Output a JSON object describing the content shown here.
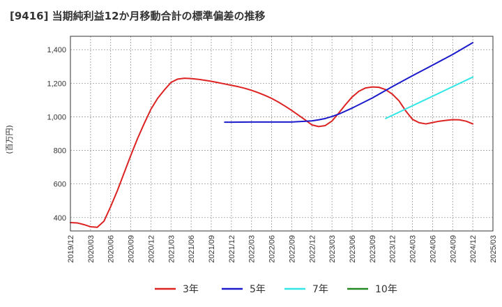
{
  "chart_data": {
    "type": "line",
    "title": "[9416]  当期純利益12か月移動合計の標準偏差の推移",
    "ylabel": "(百万円)",
    "xlabel": "",
    "ylim": [
      320,
      1480
    ],
    "yticks": [
      400,
      600,
      800,
      1000,
      1200,
      1400
    ],
    "ytick_labels": [
      "400",
      "600",
      "800",
      "1,000",
      "1,200",
      "1,400"
    ],
    "xticks": [
      "2019/12",
      "2020/03",
      "2020/06",
      "2020/09",
      "2020/12",
      "2021/03",
      "2021/06",
      "2021/09",
      "2021/12",
      "2022/03",
      "2022/06",
      "2022/09",
      "2022/12",
      "2023/03",
      "2023/06",
      "2023/09",
      "2023/12",
      "2024/03",
      "2024/06",
      "2024/09",
      "2024/12",
      "2025/03"
    ],
    "grid": true,
    "legend_position": "bottom",
    "series": [
      {
        "name": "3年",
        "color": "#dd2222",
        "points": [
          [
            "2019/12",
            370
          ],
          [
            "2020/01",
            368
          ],
          [
            "2020/02",
            358
          ],
          [
            "2020/03",
            345
          ],
          [
            "2020/04",
            342
          ],
          [
            "2020/05",
            378
          ],
          [
            "2020/06",
            465
          ],
          [
            "2020/07",
            560
          ],
          [
            "2020/08",
            665
          ],
          [
            "2020/09",
            770
          ],
          [
            "2020/10",
            870
          ],
          [
            "2020/11",
            960
          ],
          [
            "2020/12",
            1045
          ],
          [
            "2021/01",
            1110
          ],
          [
            "2021/02",
            1160
          ],
          [
            "2021/03",
            1205
          ],
          [
            "2021/04",
            1225
          ],
          [
            "2021/05",
            1230
          ],
          [
            "2021/06",
            1228
          ],
          [
            "2021/07",
            1224
          ],
          [
            "2021/08",
            1218
          ],
          [
            "2021/09",
            1212
          ],
          [
            "2021/10",
            1204
          ],
          [
            "2021/11",
            1196
          ],
          [
            "2021/12",
            1188
          ],
          [
            "2022/01",
            1180
          ],
          [
            "2022/02",
            1170
          ],
          [
            "2022/03",
            1158
          ],
          [
            "2022/04",
            1144
          ],
          [
            "2022/05",
            1128
          ],
          [
            "2022/06",
            1110
          ],
          [
            "2022/07",
            1088
          ],
          [
            "2022/08",
            1064
          ],
          [
            "2022/09",
            1038
          ],
          [
            "2022/10",
            1010
          ],
          [
            "2022/11",
            982
          ],
          [
            "2022/12",
            952
          ],
          [
            "2023/01",
            942
          ],
          [
            "2023/02",
            948
          ],
          [
            "2023/03",
            975
          ],
          [
            "2023/04",
            1022
          ],
          [
            "2023/05",
            1072
          ],
          [
            "2023/06",
            1118
          ],
          [
            "2023/07",
            1152
          ],
          [
            "2023/08",
            1172
          ],
          [
            "2023/09",
            1178
          ],
          [
            "2023/10",
            1176
          ],
          [
            "2023/11",
            1162
          ],
          [
            "2023/12",
            1135
          ],
          [
            "2024/01",
            1095
          ],
          [
            "2024/02",
            1035
          ],
          [
            "2024/03",
            985
          ],
          [
            "2024/04",
            965
          ],
          [
            "2024/05",
            958
          ],
          [
            "2024/06",
            966
          ],
          [
            "2024/07",
            974
          ],
          [
            "2024/08",
            979
          ],
          [
            "2024/09",
            983
          ],
          [
            "2024/10",
            982
          ],
          [
            "2024/11",
            974
          ],
          [
            "2024/12",
            958
          ]
        ]
      },
      {
        "name": "5年",
        "color": "#1a1acc",
        "points": [
          [
            "2021/11",
            968
          ],
          [
            "2021/12",
            968
          ],
          [
            "2022/03",
            969
          ],
          [
            "2022/06",
            969
          ],
          [
            "2022/09",
            969
          ],
          [
            "2022/12",
            976
          ],
          [
            "2023/01",
            982
          ],
          [
            "2023/02",
            990
          ],
          [
            "2023/03",
            1002
          ],
          [
            "2023/04",
            1016
          ],
          [
            "2023/06",
            1052
          ],
          [
            "2023/09",
            1112
          ],
          [
            "2023/12",
            1180
          ],
          [
            "2024/03",
            1245
          ],
          [
            "2024/06",
            1308
          ],
          [
            "2024/09",
            1372
          ],
          [
            "2024/12",
            1442
          ]
        ]
      },
      {
        "name": "7年",
        "color": "#33e6e6",
        "points": [
          [
            "2023/11",
            990
          ],
          [
            "2024/12",
            1237
          ]
        ]
      },
      {
        "name": "10年",
        "color": "#228822",
        "points": []
      }
    ]
  }
}
